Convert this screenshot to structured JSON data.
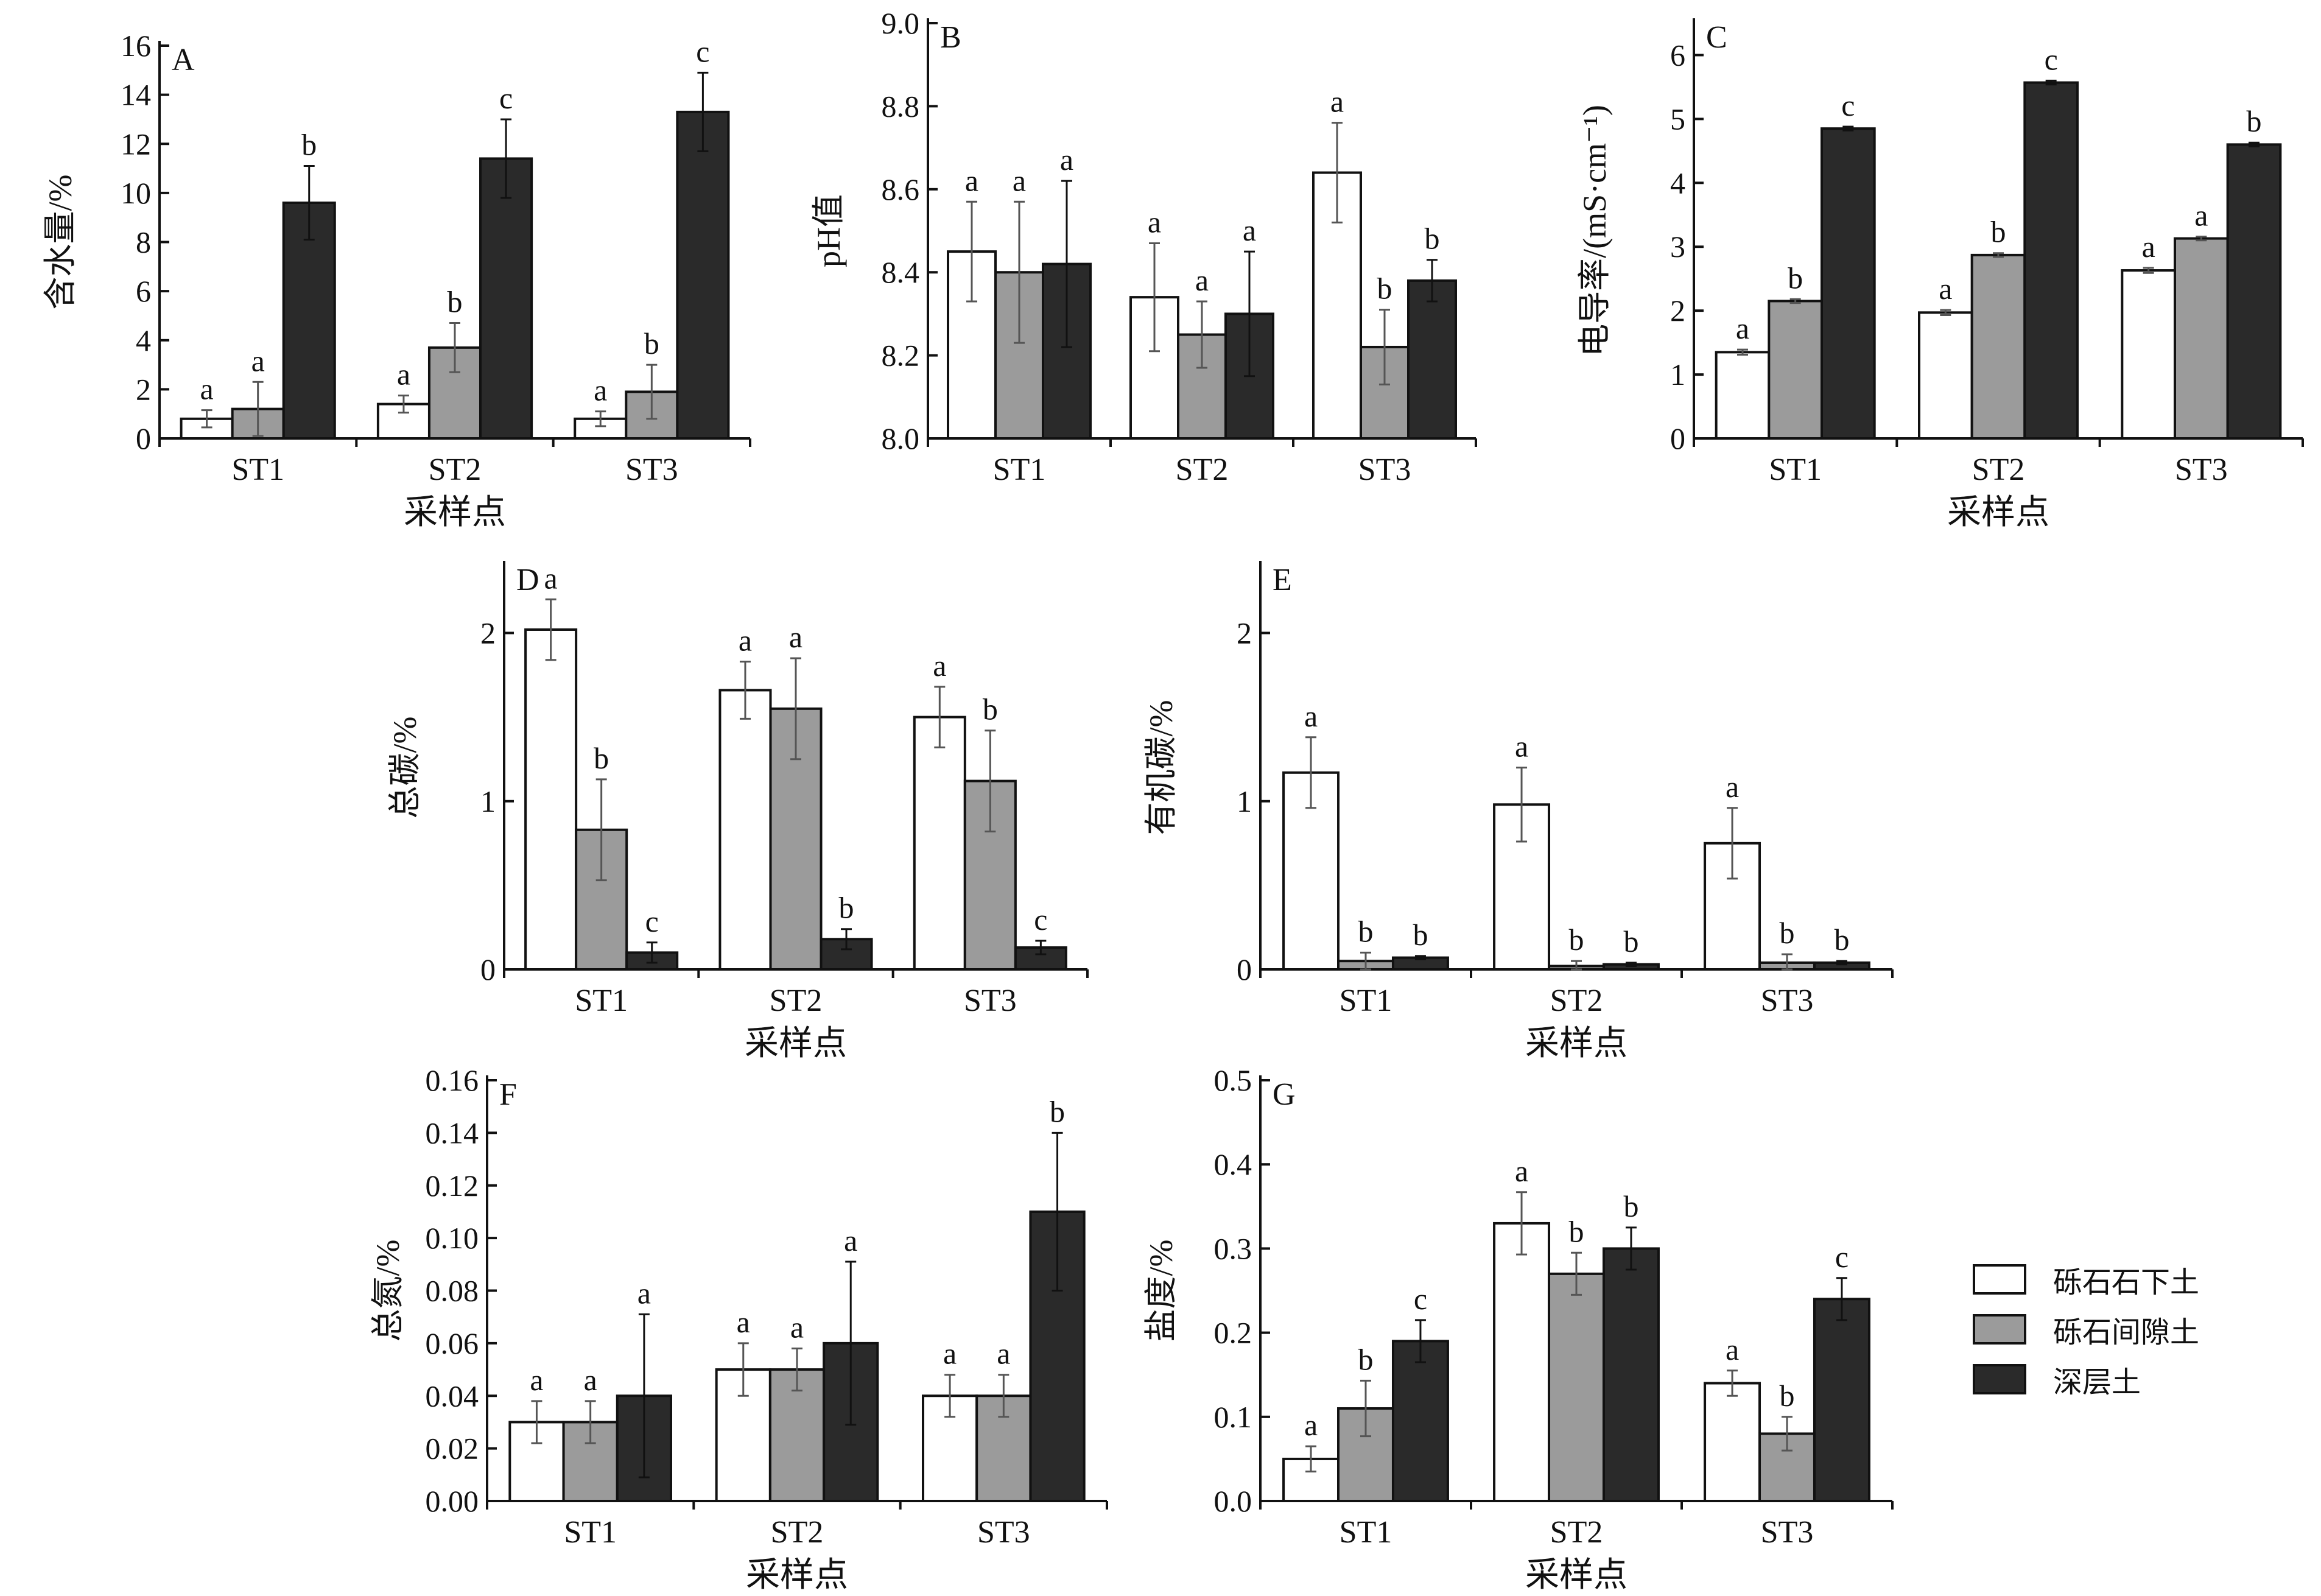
{
  "legend": {
    "items": [
      {
        "label": "砾石石下土",
        "color": "#ffffff"
      },
      {
        "label": "砾石间隙土",
        "color": "#9b9b9b"
      },
      {
        "label": "深层土",
        "color": "#2a2a2a"
      }
    ]
  },
  "chart_data": [
    {
      "type": "bar",
      "panel": "A",
      "ylabel": "含水量/%",
      "xlabel": "采样点",
      "categories": [
        "ST1",
        "ST2",
        "ST3"
      ],
      "ylim": [
        0,
        16
      ],
      "yticks": [
        0,
        2,
        4,
        6,
        8,
        10,
        12,
        14,
        16
      ],
      "series": [
        {
          "name": "砾石石下土",
          "values": [
            0.8,
            1.4,
            0.8
          ],
          "errors": [
            0.35,
            0.35,
            0.3
          ],
          "letters": [
            "a",
            "a",
            "a"
          ]
        },
        {
          "name": "砾石间隙土",
          "values": [
            1.2,
            3.7,
            1.9
          ],
          "errors": [
            1.1,
            1.0,
            1.1
          ],
          "letters": [
            "a",
            "b",
            "b"
          ]
        },
        {
          "name": "深层土",
          "values": [
            9.6,
            11.4,
            13.3
          ],
          "errors": [
            1.5,
            1.6,
            1.6
          ],
          "letters": [
            "b",
            "c",
            "c"
          ]
        }
      ]
    },
    {
      "type": "bar",
      "panel": "B",
      "ylabel": "pH值",
      "xlabel": "",
      "categories": [
        "ST1",
        "ST2",
        "ST3"
      ],
      "ylim": [
        8.0,
        9.0
      ],
      "yticks": [
        "8.0",
        "8.2",
        "8.4",
        "8.6",
        "8.8",
        "9.0"
      ],
      "series": [
        {
          "name": "砾石石下土",
          "values": [
            8.45,
            8.34,
            8.64
          ],
          "errors": [
            0.12,
            0.13,
            0.12
          ],
          "letters": [
            "a",
            "a",
            "a"
          ]
        },
        {
          "name": "砾石间隙土",
          "values": [
            8.4,
            8.25,
            8.22
          ],
          "errors": [
            0.17,
            0.08,
            0.09
          ],
          "letters": [
            "a",
            "a",
            "b"
          ]
        },
        {
          "name": "深层土",
          "values": [
            8.42,
            8.3,
            8.38
          ],
          "errors": [
            0.2,
            0.15,
            0.05
          ],
          "letters": [
            "a",
            "a",
            "b"
          ]
        }
      ]
    },
    {
      "type": "bar",
      "panel": "C",
      "ylabel": "电导率/(mS·cm⁻¹)",
      "xlabel": "采样点",
      "categories": [
        "ST1",
        "ST2",
        "ST3"
      ],
      "ylim": [
        0,
        6.5
      ],
      "yticks": [
        0,
        1,
        2,
        3,
        4,
        5,
        6
      ],
      "series": [
        {
          "name": "砾石石下土",
          "values": [
            1.35,
            1.97,
            2.63
          ],
          "errors": [
            0.04,
            0.04,
            0.04
          ],
          "letters": [
            "a",
            "a",
            "a"
          ]
        },
        {
          "name": "砾石间隙土",
          "values": [
            2.15,
            2.87,
            3.13
          ],
          "errors": [
            0.03,
            0.03,
            0.03
          ],
          "letters": [
            "b",
            "b",
            "a"
          ]
        },
        {
          "name": "深层土",
          "values": [
            4.85,
            5.57,
            4.6
          ],
          "errors": [
            0.03,
            0.03,
            0.03
          ],
          "letters": [
            "c",
            "c",
            "b"
          ]
        }
      ]
    },
    {
      "type": "bar",
      "panel": "D",
      "ylabel": "总碳/%",
      "xlabel": "采样点",
      "categories": [
        "ST1",
        "ST2",
        "ST3"
      ],
      "ylim": [
        0,
        2.4
      ],
      "yticks": [
        0,
        1,
        2
      ],
      "series": [
        {
          "name": "砾石石下土",
          "values": [
            2.02,
            1.66,
            1.5
          ],
          "errors": [
            0.18,
            0.17,
            0.18
          ],
          "letters": [
            "a",
            "a",
            "a"
          ]
        },
        {
          "name": "砾石间隙土",
          "values": [
            0.83,
            1.55,
            1.12
          ],
          "errors": [
            0.3,
            0.3,
            0.3
          ],
          "letters": [
            "b",
            "a",
            "b"
          ]
        },
        {
          "name": "深层土",
          "values": [
            0.1,
            0.18,
            0.13
          ],
          "errors": [
            0.06,
            0.06,
            0.04
          ],
          "letters": [
            "c",
            "b",
            "c"
          ]
        }
      ]
    },
    {
      "type": "bar",
      "panel": "E",
      "ylabel": "有机碳/%",
      "xlabel": "采样点",
      "categories": [
        "ST1",
        "ST2",
        "ST3"
      ],
      "ylim": [
        0,
        2.4
      ],
      "yticks": [
        0,
        1,
        2
      ],
      "series": [
        {
          "name": "砾石石下土",
          "values": [
            1.17,
            0.98,
            0.75
          ],
          "errors": [
            0.21,
            0.22,
            0.21
          ],
          "letters": [
            "a",
            "a",
            "a"
          ]
        },
        {
          "name": "砾石间隙土",
          "values": [
            0.05,
            0.02,
            0.04
          ],
          "errors": [
            0.05,
            0.03,
            0.05
          ],
          "letters": [
            "b",
            "b",
            "b"
          ]
        },
        {
          "name": "深层土",
          "values": [
            0.07,
            0.03,
            0.04
          ],
          "errors": [
            0.01,
            0.01,
            0.01
          ],
          "letters": [
            "b",
            "b",
            "b"
          ]
        }
      ]
    },
    {
      "type": "bar",
      "panel": "F",
      "ylabel": "总氮/%",
      "xlabel": "采样点",
      "categories": [
        "ST1",
        "ST2",
        "ST3"
      ],
      "ylim": [
        0,
        0.16
      ],
      "yticks": [
        "0.00",
        "0.02",
        "0.04",
        "0.06",
        "0.08",
        "0.10",
        "0.12",
        "0.14",
        "0.16"
      ],
      "series": [
        {
          "name": "砾石石下土",
          "values": [
            0.03,
            0.05,
            0.04
          ],
          "errors": [
            0.008,
            0.01,
            0.008
          ],
          "letters": [
            "a",
            "a",
            "a"
          ]
        },
        {
          "name": "砾石间隙土",
          "values": [
            0.03,
            0.05,
            0.04
          ],
          "errors": [
            0.008,
            0.008,
            0.008
          ],
          "letters": [
            "a",
            "a",
            "a"
          ]
        },
        {
          "name": "深层土",
          "values": [
            0.04,
            0.06,
            0.11
          ],
          "errors": [
            0.031,
            0.031,
            0.03
          ],
          "letters": [
            "a",
            "a",
            "b"
          ]
        }
      ]
    },
    {
      "type": "bar",
      "panel": "G",
      "ylabel": "盐度/%",
      "xlabel": "采样点",
      "categories": [
        "ST1",
        "ST2",
        "ST3"
      ],
      "ylim": [
        0,
        0.5
      ],
      "yticks": [
        "0.0",
        "0.1",
        "0.2",
        "0.3",
        "0.4",
        "0.5"
      ],
      "series": [
        {
          "name": "砾石石下土",
          "values": [
            0.05,
            0.33,
            0.14
          ],
          "errors": [
            0.015,
            0.037,
            0.015
          ],
          "letters": [
            "a",
            "a",
            "a"
          ]
        },
        {
          "name": "砾石间隙土",
          "values": [
            0.11,
            0.27,
            0.08
          ],
          "errors": [
            0.033,
            0.025,
            0.02
          ],
          "letters": [
            "b",
            "b",
            "b"
          ]
        },
        {
          "name": "深层土",
          "values": [
            0.19,
            0.3,
            0.24
          ],
          "errors": [
            0.025,
            0.025,
            0.025
          ],
          "letters": [
            "c",
            "b",
            "c"
          ]
        }
      ]
    }
  ]
}
